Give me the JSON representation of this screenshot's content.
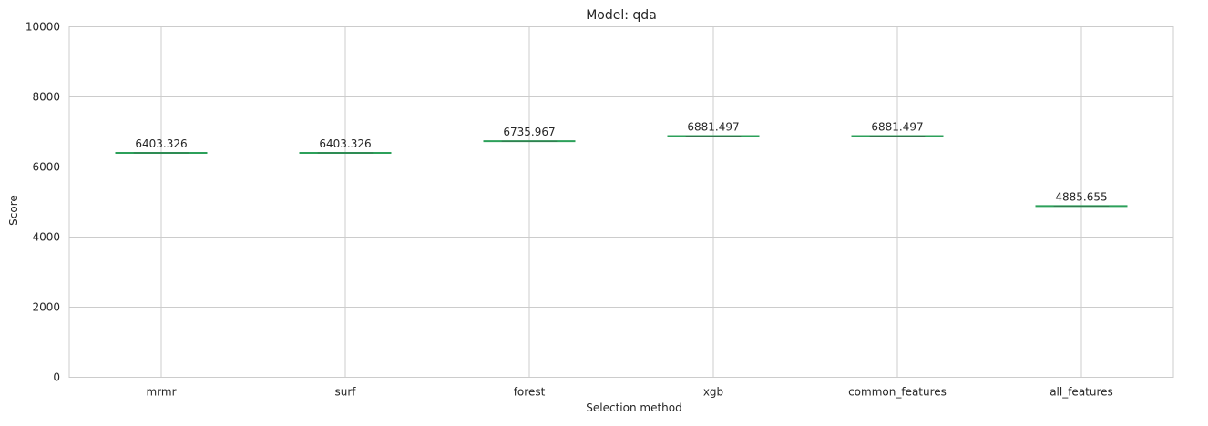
{
  "chart_data": {
    "type": "box",
    "title": "Model: qda",
    "xlabel": "Selection method",
    "ylabel": "Score",
    "ylim": [
      0,
      10000
    ],
    "yticks": [
      0,
      2000,
      4000,
      6000,
      8000,
      10000
    ],
    "ytick_labels": [
      "0",
      "2000",
      "4000",
      "6000",
      "8000",
      "10000"
    ],
    "grid": true,
    "categories": [
      "mrmr",
      "surf",
      "forest",
      "xgb",
      "common_features",
      "all_features"
    ],
    "values": [
      6403.326,
      6403.326,
      6735.967,
      6881.497,
      6881.497,
      4885.655
    ],
    "data_labels": [
      "6403.326",
      "6403.326",
      "6735.967",
      "6881.497",
      "6881.497",
      "4885.655"
    ],
    "colors": {
      "median_line": "#2ca05a",
      "grid": "#cccccc",
      "axes_edge": "#cccccc",
      "text": "#262626"
    }
  }
}
